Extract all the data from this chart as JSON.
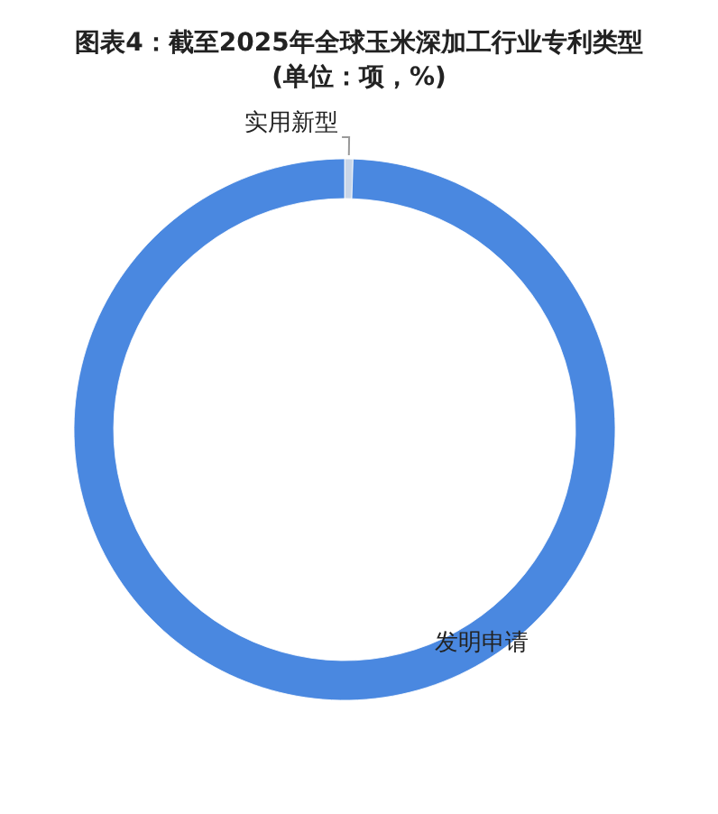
{
  "chart_data": {
    "type": "donut",
    "title": "图表4：截至2025年全球玉米深加工行业专利类型",
    "subtitle": "(单位：项，%)",
    "categories": [
      "实用新型",
      "发明申请"
    ],
    "values": [
      0.5,
      99.5
    ],
    "colors": [
      "#c9d6e8",
      "#4a88e0"
    ]
  }
}
